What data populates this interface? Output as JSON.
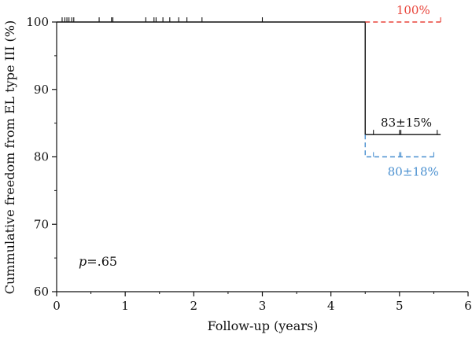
{
  "chart_data": {
    "type": "line",
    "title": "",
    "xlabel": "Follow-up (years)",
    "ylabel": "Cummulative freedom from EL type III (%)",
    "xlim": [
      0,
      6
    ],
    "ylim": [
      60,
      100
    ],
    "x_ticks": [
      0,
      1,
      2,
      3,
      4,
      5,
      6
    ],
    "y_ticks": [
      60,
      70,
      80,
      90,
      100
    ],
    "x_tick_labels": [
      "0",
      "1",
      "2",
      "3",
      "4",
      "5",
      "6"
    ],
    "y_tick_labels": [
      "60",
      "70",
      "80",
      "90",
      "100"
    ],
    "grid": false,
    "legend": "none",
    "series": [
      {
        "color": "#111111",
        "dash": "solid",
        "steps": [
          [
            0,
            100
          ],
          [
            4.5,
            100
          ],
          [
            4.5,
            83.3
          ],
          [
            5.6,
            83.3
          ]
        ],
        "censored": [
          0.08,
          0.12,
          0.15,
          0.18,
          0.22,
          0.25,
          0.62,
          0.8,
          0.82,
          1.3,
          1.42,
          1.45,
          1.55,
          1.65,
          1.78,
          1.9,
          2.12,
          3.0,
          4.62,
          5.0,
          5.02,
          5.55
        ]
      },
      {
        "color": "#e8443a",
        "dash": "dashed",
        "steps": [
          [
            4.5,
            100
          ],
          [
            5.6,
            100
          ]
        ],
        "censored": [
          5.6
        ]
      },
      {
        "color": "#4a90d0",
        "dash": "dashed",
        "steps": [
          [
            4.5,
            83.3
          ],
          [
            4.5,
            80
          ],
          [
            5.5,
            80
          ]
        ],
        "censored": [
          4.62,
          5.0,
          5.02,
          5.5
        ]
      }
    ],
    "annotations": [
      {
        "text": "100%",
        "x": 5.2,
        "y": 100,
        "color": "#e8443a"
      },
      {
        "text": "83±15%",
        "x": 5.1,
        "y": 83.3,
        "color": "#111111"
      },
      {
        "text": "80±18%",
        "x": 5.2,
        "y": 80,
        "color": "#4a90d0"
      }
    ],
    "p_label_prefix": "p",
    "p_label_value": "=.65"
  }
}
